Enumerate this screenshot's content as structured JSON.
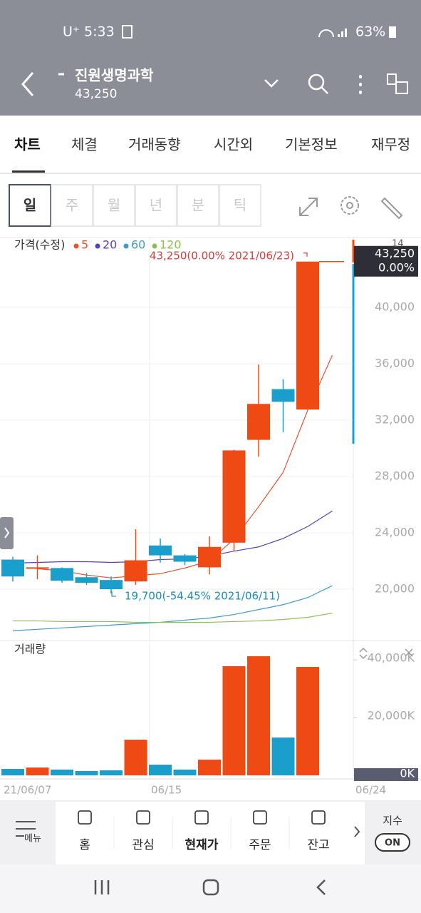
{
  "status_bar": {
    "carrier": "U⁺",
    "time": "5:33",
    "battery": "63%"
  },
  "header": {
    "title": "진원생명과학",
    "price": "43,250"
  },
  "tabs": [
    "차트",
    "체결",
    "거래동향",
    "시간외",
    "기본정보",
    "재무정"
  ],
  "periods": [
    "일",
    "주",
    "월",
    "년",
    "분",
    "틱"
  ],
  "chart_data": [
    {
      "type": "candlestick",
      "title": "가격(수정)",
      "categories": [
        "21/06/07",
        null,
        null,
        null,
        null,
        null,
        "06/15",
        null,
        null,
        null,
        null,
        null,
        null,
        "06/24"
      ],
      "open": [
        22100,
        21450,
        21500,
        20850,
        20650,
        20550,
        23100,
        22400,
        21550,
        23300,
        30600,
        34200,
        32750,
        null
      ],
      "high": [
        22300,
        22400,
        21550,
        21150,
        20900,
        24250,
        23600,
        22500,
        23750,
        29900,
        35950,
        34900,
        43250,
        null
      ],
      "low": [
        20550,
        20700,
        20450,
        20300,
        19700,
        20300,
        21900,
        21700,
        21050,
        22700,
        29400,
        31150,
        32750,
        null
      ],
      "close": [
        20900,
        21550,
        20600,
        20450,
        20000,
        22050,
        22400,
        21950,
        23000,
        29850,
        33150,
        33300,
        43250,
        null
      ],
      "up_color": "#f04a14",
      "down_color": "#1a9fcc",
      "series": [
        {
          "name": "5",
          "color": "#e8522a",
          "values": [
            null,
            21450,
            21300,
            21000,
            20800,
            20950,
            21100,
            21500,
            22000,
            23550,
            25850,
            28300,
            32700,
            36600
          ]
        },
        {
          "name": "20",
          "color": "#5a3fc0",
          "values": [
            21850,
            21900,
            21950,
            21950,
            21900,
            21950,
            22100,
            22150,
            22350,
            22700,
            23000,
            23600,
            24450,
            25550
          ]
        },
        {
          "name": "60",
          "color": "#3c9ad0",
          "values": [
            17050,
            17150,
            17250,
            17350,
            17450,
            17550,
            17650,
            17800,
            17950,
            18200,
            18550,
            18900,
            19400,
            20250
          ]
        },
        {
          "name": "120",
          "color": "#8bc34a",
          "values": [
            17750,
            17750,
            17700,
            17700,
            17700,
            17650,
            17650,
            17650,
            17650,
            17700,
            17750,
            17850,
            18000,
            18300
          ]
        }
      ],
      "ylim": [
        16355,
        44960
      ],
      "yticks": [
        {
          "value": 20000,
          "label": "20,000"
        },
        {
          "value": 24000,
          "label": "24,000"
        },
        {
          "value": 28000,
          "label": "28,000"
        },
        {
          "value": 32000,
          "label": "32,000"
        },
        {
          "value": 36000,
          "label": "36,000"
        },
        {
          "value": 40000,
          "label": "40,000"
        }
      ],
      "max_label": "43,250(0.00% 2021/06/23)",
      "min_label": "19,700(-54.45% 2021/06/11)",
      "last_price_label": "43,250",
      "last_change_label": "0.00%",
      "corner_label": "14"
    },
    {
      "type": "bar",
      "title": "거래량",
      "values": [
        2220,
        2700,
        1980,
        1480,
        1730,
        12350,
        3700,
        1980,
        5430,
        37800,
        41250,
        13100,
        37550,
        0
      ],
      "ylim": [
        0,
        46200
      ],
      "yticks": [
        {
          "value": 0,
          "label": "0K"
        },
        {
          "value": 20000,
          "label": "20,000K"
        },
        {
          "value": 40000,
          "label": "40,000K"
        }
      ]
    }
  ],
  "bottom_nav": {
    "menu": "메뉴",
    "items": [
      "홈",
      "관심",
      "현재가",
      "주문",
      "잔고"
    ],
    "index_label": "지수",
    "toggle": "ON"
  }
}
